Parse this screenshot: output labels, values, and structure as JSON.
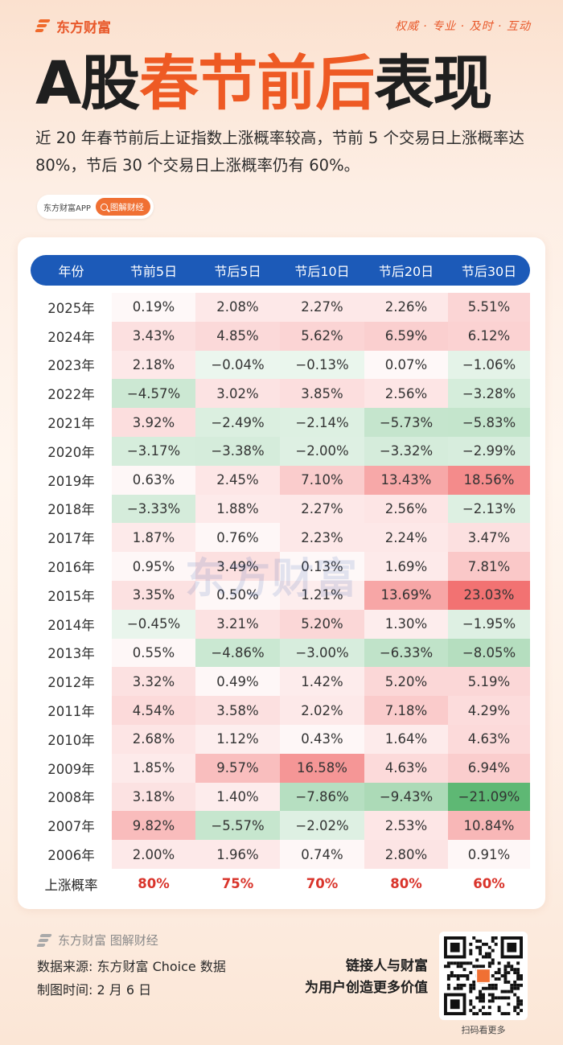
{
  "brand": {
    "name": "东方财富",
    "slogan": "权威 · 专业 · 及时 · 互动"
  },
  "title": {
    "part1": "A股",
    "part2": "春节前后",
    "part3": "表现"
  },
  "subtitle": "近 20 年春节前后上证指数上涨概率较高，节前 5 个交易日上涨概率达 80%，节后 30 个交易日上涨概率仍有 60%。",
  "app_pill": {
    "app_name": "东方财富APP",
    "button_label": "图解财经",
    "icon": "search-icon"
  },
  "table": {
    "headers": [
      "年份",
      "节前5日",
      "节后5日",
      "节后10日",
      "节后20日",
      "节后30日"
    ],
    "rows": [
      [
        "2025年",
        "0.19%",
        "2.08%",
        "2.27%",
        "2.26%",
        "5.51%"
      ],
      [
        "2024年",
        "3.43%",
        "4.85%",
        "5.62%",
        "6.59%",
        "6.12%"
      ],
      [
        "2023年",
        "2.18%",
        "−0.04%",
        "−0.13%",
        "0.07%",
        "−1.06%"
      ],
      [
        "2022年",
        "−4.57%",
        "3.02%",
        "3.85%",
        "2.56%",
        "−3.28%"
      ],
      [
        "2021年",
        "3.92%",
        "−2.49%",
        "−2.14%",
        "−5.73%",
        "−5.83%"
      ],
      [
        "2020年",
        "−3.17%",
        "−3.38%",
        "−2.00%",
        "−3.32%",
        "−2.99%"
      ],
      [
        "2019年",
        "0.63%",
        "2.45%",
        "7.10%",
        "13.43%",
        "18.56%"
      ],
      [
        "2018年",
        "−3.33%",
        "1.88%",
        "2.27%",
        "2.56%",
        "−2.13%"
      ],
      [
        "2017年",
        "1.87%",
        "0.76%",
        "2.23%",
        "2.24%",
        "3.47%"
      ],
      [
        "2016年",
        "0.95%",
        "3.49%",
        "0.13%",
        "1.69%",
        "7.81%"
      ],
      [
        "2015年",
        "3.35%",
        "0.50%",
        "1.21%",
        "13.69%",
        "23.03%"
      ],
      [
        "2014年",
        "−0.45%",
        "3.21%",
        "5.20%",
        "1.30%",
        "−1.95%"
      ],
      [
        "2013年",
        "0.55%",
        "−4.86%",
        "−3.00%",
        "−6.33%",
        "−8.05%"
      ],
      [
        "2012年",
        "3.32%",
        "0.49%",
        "1.42%",
        "5.20%",
        "5.19%"
      ],
      [
        "2011年",
        "4.54%",
        "3.58%",
        "2.02%",
        "7.18%",
        "4.29%"
      ],
      [
        "2010年",
        "2.68%",
        "1.12%",
        "0.43%",
        "1.64%",
        "4.63%"
      ],
      [
        "2009年",
        "1.85%",
        "9.57%",
        "16.58%",
        "4.63%",
        "6.94%"
      ],
      [
        "2008年",
        "3.18%",
        "1.40%",
        "−7.86%",
        "−9.43%",
        "−21.09%"
      ],
      [
        "2007年",
        "9.82%",
        "−5.57%",
        "−2.02%",
        "2.53%",
        "10.84%"
      ],
      [
        "2006年",
        "2.00%",
        "1.96%",
        "0.74%",
        "2.80%",
        "0.91%"
      ]
    ],
    "rate_row": {
      "label": "上涨概率",
      "values": [
        "80%",
        "75%",
        "70%",
        "80%",
        "60%"
      ]
    },
    "colors": {
      "header_bg": "#1c5ab8",
      "positive": "#ee4a4a",
      "negative": "#3aa856",
      "rate_text": "#d9342b"
    }
  },
  "watermark": "东方财富",
  "footer": {
    "brand": "东方财富 图解财经",
    "source": "数据来源: 东方财富 Choice 数据",
    "date": "制图时间: 2 月 6 日",
    "tagline_line1": "链接人与财富",
    "tagline_line2": "为用户创造更多价值",
    "qr_label": "扫码看更多"
  }
}
